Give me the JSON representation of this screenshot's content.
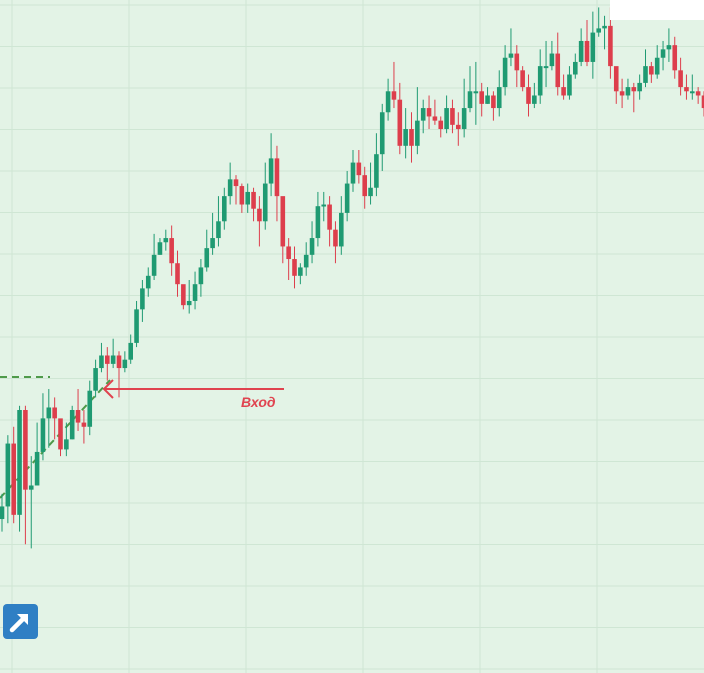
{
  "chart_data": {
    "type": "candlestick",
    "title": "",
    "xlabel": "",
    "ylabel": "",
    "ylim": [
      0,
      1000
    ],
    "grid": true,
    "colors": {
      "background": "#e3f3e6",
      "grid": "#cfe6d4",
      "bull": "#1f9a72",
      "bear": "#dd3e4c",
      "level": "#4f9a4a",
      "arrow": "#e0434f",
      "button": "#2f7fc4"
    },
    "candles": [
      [
        445,
        460,
        475,
        430
      ],
      [
        460,
        535,
        545,
        440
      ],
      [
        535,
        450,
        555,
        440
      ],
      [
        450,
        575,
        580,
        430
      ],
      [
        575,
        480,
        580,
        415
      ],
      [
        480,
        485,
        520,
        410
      ],
      [
        485,
        525,
        560,
        485
      ],
      [
        525,
        565,
        595,
        515
      ],
      [
        565,
        578,
        600,
        530
      ],
      [
        578,
        565,
        590,
        540
      ],
      [
        565,
        528,
        560,
        520
      ],
      [
        528,
        540,
        560,
        520
      ],
      [
        540,
        575,
        580,
        540
      ],
      [
        575,
        560,
        600,
        550
      ],
      [
        560,
        555,
        575,
        535
      ],
      [
        555,
        598,
        610,
        545
      ],
      [
        598,
        625,
        635,
        590
      ],
      [
        625,
        640,
        655,
        620
      ],
      [
        640,
        630,
        650,
        610
      ],
      [
        630,
        640,
        660,
        625
      ],
      [
        640,
        625,
        645,
        590
      ],
      [
        625,
        635,
        645,
        620
      ],
      [
        635,
        655,
        665,
        630
      ],
      [
        655,
        695,
        705,
        650
      ],
      [
        695,
        720,
        730,
        680
      ],
      [
        720,
        735,
        745,
        710
      ],
      [
        735,
        760,
        785,
        730
      ],
      [
        760,
        775,
        780,
        760
      ],
      [
        775,
        780,
        790,
        765
      ],
      [
        780,
        750,
        795,
        735
      ],
      [
        750,
        725,
        765,
        710
      ],
      [
        725,
        700,
        715,
        695
      ],
      [
        700,
        705,
        730,
        690
      ],
      [
        705,
        725,
        740,
        695
      ],
      [
        725,
        745,
        755,
        710
      ],
      [
        745,
        768,
        790,
        740
      ],
      [
        768,
        780,
        810,
        760
      ],
      [
        780,
        800,
        830,
        770
      ],
      [
        800,
        830,
        840,
        790
      ],
      [
        830,
        850,
        870,
        820
      ],
      [
        850,
        842,
        855,
        820
      ],
      [
        842,
        820,
        845,
        810
      ],
      [
        820,
        835,
        845,
        810
      ],
      [
        835,
        815,
        840,
        800
      ],
      [
        815,
        800,
        830,
        770
      ],
      [
        800,
        845,
        870,
        790
      ],
      [
        845,
        875,
        905,
        830
      ],
      [
        875,
        830,
        890,
        800
      ],
      [
        830,
        770,
        820,
        750
      ],
      [
        770,
        755,
        780,
        730
      ],
      [
        755,
        735,
        770,
        720
      ],
      [
        735,
        745,
        750,
        725
      ],
      [
        745,
        760,
        775,
        735
      ],
      [
        760,
        780,
        800,
        750
      ],
      [
        780,
        818,
        835,
        770
      ],
      [
        818,
        820,
        835,
        800
      ],
      [
        820,
        790,
        830,
        770
      ],
      [
        790,
        770,
        800,
        750
      ],
      [
        770,
        810,
        830,
        760
      ],
      [
        810,
        845,
        860,
        800
      ],
      [
        845,
        870,
        885,
        835
      ],
      [
        870,
        855,
        885,
        845
      ],
      [
        855,
        830,
        865,
        815
      ],
      [
        830,
        840,
        870,
        820
      ],
      [
        840,
        880,
        905,
        830
      ],
      [
        880,
        930,
        940,
        860
      ],
      [
        930,
        955,
        970,
        920
      ],
      [
        955,
        945,
        990,
        935
      ],
      [
        945,
        890,
        965,
        880
      ],
      [
        890,
        910,
        935,
        875
      ],
      [
        910,
        890,
        930,
        870
      ],
      [
        890,
        920,
        960,
        880
      ],
      [
        920,
        935,
        945,
        905
      ],
      [
        935,
        925,
        950,
        910
      ],
      [
        925,
        920,
        945,
        915
      ],
      [
        920,
        910,
        925,
        900
      ],
      [
        910,
        935,
        950,
        905
      ],
      [
        935,
        915,
        945,
        905
      ],
      [
        915,
        910,
        930,
        890
      ],
      [
        910,
        935,
        970,
        900
      ],
      [
        935,
        955,
        985,
        930
      ],
      [
        955,
        955,
        990,
        915
      ],
      [
        955,
        940,
        965,
        925
      ],
      [
        940,
        950,
        960,
        940
      ],
      [
        950,
        935,
        955,
        920
      ],
      [
        935,
        960,
        980,
        925
      ],
      [
        960,
        995,
        1010,
        950
      ],
      [
        995,
        1000,
        1030,
        985
      ],
      [
        1000,
        980,
        1010,
        960
      ],
      [
        980,
        960,
        985,
        955
      ],
      [
        960,
        940,
        975,
        925
      ],
      [
        940,
        950,
        965,
        935
      ],
      [
        950,
        985,
        1005,
        940
      ],
      [
        985,
        985,
        1015,
        960
      ],
      [
        985,
        1000,
        1015,
        980
      ],
      [
        1000,
        960,
        1025,
        950
      ],
      [
        960,
        950,
        975,
        945
      ],
      [
        950,
        975,
        985,
        945
      ],
      [
        975,
        990,
        1000,
        970
      ],
      [
        990,
        1015,
        1030,
        985
      ],
      [
        1015,
        990,
        1040,
        985
      ],
      [
        990,
        1025,
        1050,
        970
      ],
      [
        1025,
        1030,
        1055,
        1020
      ],
      [
        1030,
        1033,
        1045,
        1005
      ],
      [
        1033,
        985,
        1055,
        970
      ],
      [
        985,
        955,
        975,
        940
      ],
      [
        955,
        950,
        970,
        935
      ],
      [
        950,
        960,
        970,
        945
      ],
      [
        960,
        955,
        965,
        930
      ],
      [
        955,
        965,
        975,
        945
      ],
      [
        965,
        985,
        1005,
        960
      ],
      [
        985,
        975,
        990,
        965
      ],
      [
        975,
        995,
        1010,
        970
      ],
      [
        995,
        1005,
        1015,
        980
      ],
      [
        1005,
        1010,
        1030,
        990
      ],
      [
        1010,
        980,
        1020,
        970
      ],
      [
        980,
        960,
        995,
        950
      ],
      [
        960,
        955,
        975,
        945
      ],
      [
        955,
        955,
        975,
        945
      ],
      [
        955,
        950,
        960,
        940
      ],
      [
        950,
        935,
        955,
        925
      ],
      [
        935,
        950,
        990,
        935
      ],
      [
        950,
        870,
        975,
        865
      ],
      [
        870,
        860,
        875,
        845
      ]
    ],
    "annotations": [
      {
        "type": "arrow",
        "label": "Вход"
      },
      {
        "type": "level",
        "style": "dashed"
      }
    ]
  },
  "ui": {
    "expand_button": {
      "icon": "expand-arrow-icon"
    },
    "entry_label": "Вход"
  }
}
